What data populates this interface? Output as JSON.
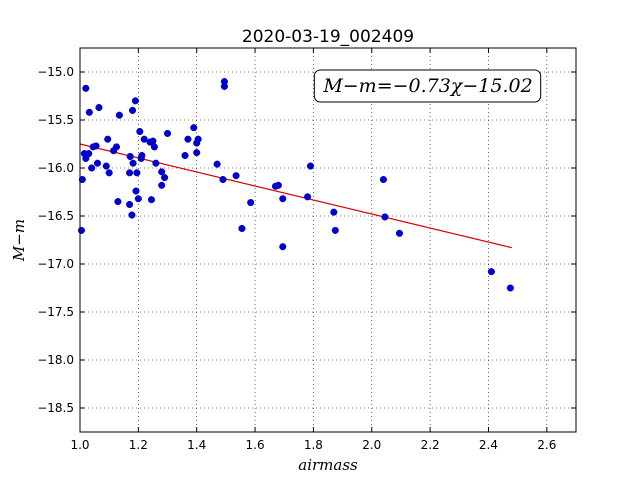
{
  "chart_data": {
    "type": "scatter",
    "title": "2020-03-19_002409",
    "xlabel": "airmass",
    "ylabel": "M−m",
    "xlim": [
      1.0,
      2.7
    ],
    "ylim": [
      -18.75,
      -14.75
    ],
    "y_inverted": true,
    "grid": true,
    "x_ticks": [
      1.0,
      1.2,
      1.4,
      1.6,
      1.8,
      2.0,
      2.2,
      2.4,
      2.6
    ],
    "x_tick_labels": [
      "1.0",
      "1.2",
      "1.4",
      "1.6",
      "1.8",
      "2.0",
      "2.2",
      "2.4",
      "2.6"
    ],
    "y_ticks": [
      -15.0,
      -15.5,
      -16.0,
      -16.5,
      -17.0,
      -17.5,
      -18.0,
      -18.5
    ],
    "y_tick_labels": [
      "−15.0",
      "−15.5",
      "−16.0",
      "−16.5",
      "−17.0",
      "−17.5",
      "−18.0",
      "−18.5"
    ],
    "annotation": "M−m=−0.73χ−15.02",
    "point_color": "#0000cc",
    "fit_color": "#dd0000",
    "fit": {
      "slope": -0.73,
      "intercept": -15.02,
      "x_range": [
        1.0,
        2.48
      ]
    },
    "points": [
      [
        1.005,
        -16.65
      ],
      [
        1.008,
        -16.12
      ],
      [
        1.015,
        -15.85
      ],
      [
        1.02,
        -15.17
      ],
      [
        1.02,
        -15.9
      ],
      [
        1.03,
        -15.85
      ],
      [
        1.032,
        -15.42
      ],
      [
        1.04,
        -16.0
      ],
      [
        1.045,
        -15.78
      ],
      [
        1.055,
        -15.77
      ],
      [
        1.06,
        -15.95
      ],
      [
        1.065,
        -15.37
      ],
      [
        1.09,
        -15.98
      ],
      [
        1.095,
        -15.7
      ],
      [
        1.1,
        -16.05
      ],
      [
        1.115,
        -15.82
      ],
      [
        1.125,
        -15.78
      ],
      [
        1.13,
        -16.35
      ],
      [
        1.135,
        -15.45
      ],
      [
        1.17,
        -16.05
      ],
      [
        1.17,
        -16.38
      ],
      [
        1.172,
        -15.88
      ],
      [
        1.178,
        -16.49
      ],
      [
        1.18,
        -15.4
      ],
      [
        1.182,
        -15.95
      ],
      [
        1.19,
        -15.3
      ],
      [
        1.192,
        -16.24
      ],
      [
        1.195,
        -16.05
      ],
      [
        1.2,
        -16.32
      ],
      [
        1.205,
        -15.62
      ],
      [
        1.21,
        -15.9
      ],
      [
        1.212,
        -15.87
      ],
      [
        1.22,
        -15.7
      ],
      [
        1.24,
        -15.73
      ],
      [
        1.245,
        -16.33
      ],
      [
        1.25,
        -15.72
      ],
      [
        1.255,
        -15.78
      ],
      [
        1.26,
        -15.95
      ],
      [
        1.28,
        -16.04
      ],
      [
        1.28,
        -16.18
      ],
      [
        1.29,
        -16.1
      ],
      [
        1.3,
        -15.64
      ],
      [
        1.36,
        -15.87
      ],
      [
        1.37,
        -15.7
      ],
      [
        1.39,
        -15.58
      ],
      [
        1.4,
        -15.84
      ],
      [
        1.4,
        -15.74
      ],
      [
        1.405,
        -15.7
      ],
      [
        1.47,
        -15.96
      ],
      [
        1.49,
        -16.12
      ],
      [
        1.495,
        -15.15
      ],
      [
        1.495,
        -15.1
      ],
      [
        1.535,
        -16.08
      ],
      [
        1.555,
        -16.63
      ],
      [
        1.585,
        -16.36
      ],
      [
        1.67,
        -16.19
      ],
      [
        1.68,
        -16.18
      ],
      [
        1.695,
        -16.32
      ],
      [
        1.695,
        -16.82
      ],
      [
        1.78,
        -16.3
      ],
      [
        1.79,
        -15.98
      ],
      [
        1.87,
        -16.46
      ],
      [
        1.875,
        -16.65
      ],
      [
        2.04,
        -16.12
      ],
      [
        2.045,
        -16.51
      ],
      [
        2.095,
        -16.68
      ],
      [
        2.41,
        -17.08
      ],
      [
        2.475,
        -17.25
      ]
    ]
  }
}
